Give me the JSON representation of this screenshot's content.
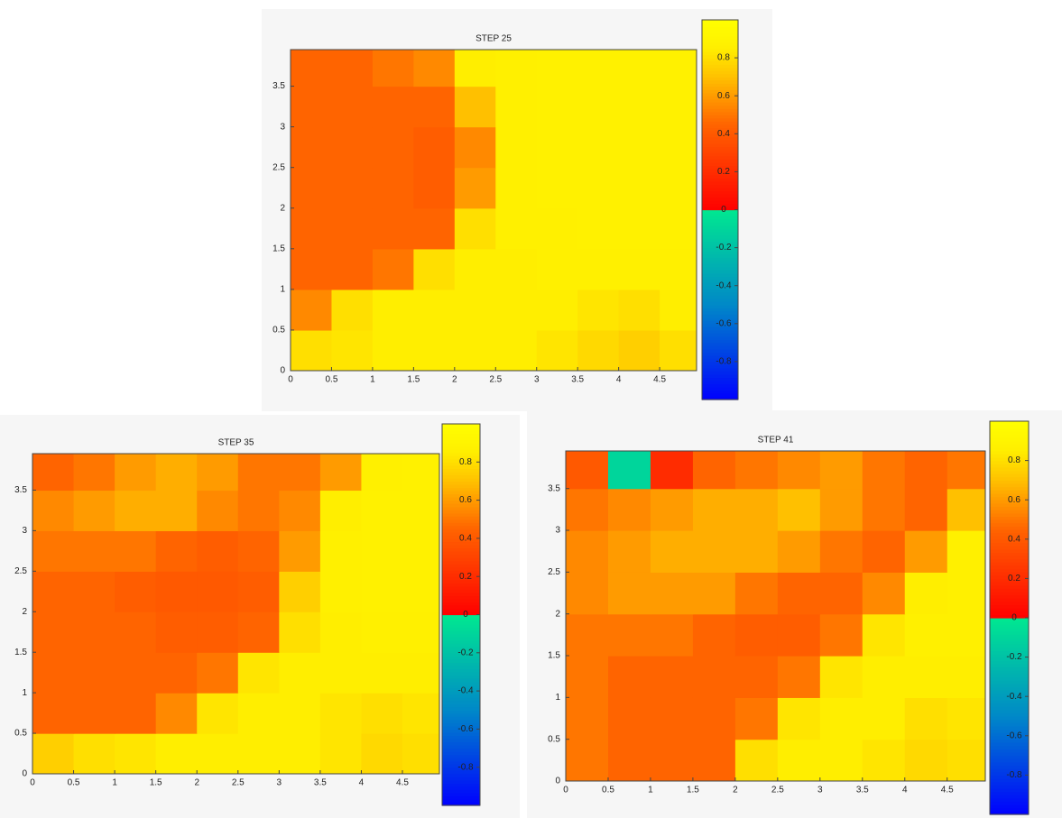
{
  "chart_data": [
    {
      "type": "heatmap",
      "title": "STEP 25",
      "x": [
        0.25,
        0.75,
        1.25,
        1.75,
        2.25,
        2.75,
        3.25,
        3.75,
        4.25,
        4.75
      ],
      "y": [
        0.25,
        0.75,
        1.25,
        1.75,
        2.25,
        2.75,
        3.25,
        3.75
      ],
      "values": [
        [
          0.8,
          0.82,
          0.85,
          0.85,
          0.85,
          0.85,
          0.82,
          0.78,
          0.75,
          0.8
        ],
        [
          0.55,
          0.8,
          0.85,
          0.85,
          0.85,
          0.85,
          0.85,
          0.82,
          0.8,
          0.85
        ],
        [
          0.45,
          0.45,
          0.5,
          0.8,
          0.85,
          0.85,
          0.87,
          0.87,
          0.87,
          0.87
        ],
        [
          0.45,
          0.45,
          0.45,
          0.45,
          0.8,
          0.87,
          0.87,
          0.88,
          0.88,
          0.88
        ],
        [
          0.45,
          0.45,
          0.45,
          0.42,
          0.6,
          0.87,
          0.88,
          0.88,
          0.88,
          0.88
        ],
        [
          0.45,
          0.45,
          0.45,
          0.42,
          0.55,
          0.87,
          0.88,
          0.88,
          0.88,
          0.88
        ],
        [
          0.45,
          0.45,
          0.45,
          0.45,
          0.7,
          0.87,
          0.88,
          0.88,
          0.88,
          0.88
        ],
        [
          0.45,
          0.45,
          0.5,
          0.55,
          0.85,
          0.87,
          0.88,
          0.88,
          0.88,
          0.88
        ]
      ],
      "xlim": [
        0,
        4.95
      ],
      "ylim": [
        0,
        3.95
      ],
      "clim": [
        -1,
        1
      ],
      "xticks": [
        0,
        0.5,
        1,
        1.5,
        2,
        2.5,
        3,
        3.5,
        4,
        4.5
      ],
      "yticks": [
        0,
        0.5,
        1,
        1.5,
        2,
        2.5,
        3,
        3.5
      ],
      "cticks": [
        -0.8,
        -0.6,
        -0.4,
        -0.2,
        0,
        0.2,
        0.4,
        0.6,
        0.8
      ],
      "colorbar": true,
      "colormap": {
        "negative": [
          [
            -1,
            "#0000ff"
          ],
          [
            -0.5,
            "#0088c8"
          ],
          [
            0,
            "#00e890"
          ]
        ],
        "positive": [
          [
            0,
            "#ff0000"
          ],
          [
            0.45,
            "#ff6400"
          ],
          [
            0.7,
            "#ffc000"
          ],
          [
            0.85,
            "#ffee00"
          ],
          [
            1,
            "#ffff00"
          ]
        ]
      }
    },
    {
      "type": "heatmap",
      "title": "STEP 35",
      "x": [
        0.25,
        0.75,
        1.25,
        1.75,
        2.25,
        2.75,
        3.25,
        3.75,
        4.25,
        4.75
      ],
      "y": [
        0.25,
        0.75,
        1.25,
        1.75,
        2.25,
        2.75,
        3.25,
        3.75
      ],
      "values": [
        [
          0.75,
          0.8,
          0.82,
          0.85,
          0.85,
          0.85,
          0.85,
          0.82,
          0.78,
          0.8
        ],
        [
          0.45,
          0.45,
          0.45,
          0.55,
          0.82,
          0.85,
          0.85,
          0.82,
          0.8,
          0.82
        ],
        [
          0.45,
          0.45,
          0.45,
          0.45,
          0.5,
          0.82,
          0.85,
          0.85,
          0.85,
          0.85
        ],
        [
          0.45,
          0.45,
          0.45,
          0.42,
          0.42,
          0.45,
          0.8,
          0.85,
          0.87,
          0.87
        ],
        [
          0.45,
          0.45,
          0.42,
          0.4,
          0.4,
          0.42,
          0.75,
          0.87,
          0.88,
          0.88
        ],
        [
          0.5,
          0.5,
          0.5,
          0.45,
          0.42,
          0.45,
          0.6,
          0.87,
          0.88,
          0.88
        ],
        [
          0.55,
          0.6,
          0.65,
          0.65,
          0.55,
          0.5,
          0.55,
          0.85,
          0.88,
          0.88
        ],
        [
          0.45,
          0.5,
          0.6,
          0.65,
          0.6,
          0.5,
          0.5,
          0.6,
          0.87,
          0.88
        ]
      ],
      "xlim": [
        0,
        4.95
      ],
      "ylim": [
        0,
        3.95
      ],
      "clim": [
        -1,
        1
      ],
      "xticks": [
        0,
        0.5,
        1,
        1.5,
        2,
        2.5,
        3,
        3.5,
        4,
        4.5
      ],
      "yticks": [
        0,
        0.5,
        1,
        1.5,
        2,
        2.5,
        3,
        3.5
      ],
      "cticks": [
        -0.8,
        -0.6,
        -0.4,
        -0.2,
        0,
        0.2,
        0.4,
        0.6,
        0.8
      ],
      "colorbar": true,
      "colormap": {
        "negative": [
          [
            -1,
            "#0000ff"
          ],
          [
            -0.5,
            "#0088c8"
          ],
          [
            0,
            "#00e890"
          ]
        ],
        "positive": [
          [
            0,
            "#ff0000"
          ],
          [
            0.45,
            "#ff6400"
          ],
          [
            0.7,
            "#ffc000"
          ],
          [
            0.85,
            "#ffee00"
          ],
          [
            1,
            "#ffff00"
          ]
        ]
      }
    },
    {
      "type": "heatmap",
      "title": "STEP 41",
      "x": [
        0.25,
        0.75,
        1.25,
        1.75,
        2.25,
        2.75,
        3.25,
        3.75,
        4.25,
        4.75
      ],
      "y": [
        0.25,
        0.75,
        1.25,
        1.75,
        2.25,
        2.75,
        3.25,
        3.75
      ],
      "values": [
        [
          0.5,
          0.45,
          0.45,
          0.45,
          0.8,
          0.85,
          0.85,
          0.82,
          0.78,
          0.8
        ],
        [
          0.5,
          0.45,
          0.45,
          0.45,
          0.5,
          0.82,
          0.85,
          0.85,
          0.8,
          0.82
        ],
        [
          0.5,
          0.45,
          0.45,
          0.45,
          0.45,
          0.5,
          0.82,
          0.85,
          0.85,
          0.85
        ],
        [
          0.5,
          0.5,
          0.5,
          0.45,
          0.42,
          0.42,
          0.5,
          0.82,
          0.87,
          0.87
        ],
        [
          0.55,
          0.6,
          0.6,
          0.6,
          0.5,
          0.45,
          0.45,
          0.55,
          0.85,
          0.87
        ],
        [
          0.55,
          0.6,
          0.65,
          0.65,
          0.65,
          0.6,
          0.5,
          0.45,
          0.6,
          0.87
        ],
        [
          0.5,
          0.55,
          0.6,
          0.65,
          0.65,
          0.7,
          0.6,
          0.5,
          0.45,
          0.7
        ],
        [
          0.4,
          -0.1,
          0.2,
          0.45,
          0.5,
          0.55,
          0.6,
          0.5,
          0.45,
          0.5
        ]
      ],
      "xlim": [
        0,
        4.95
      ],
      "ylim": [
        0,
        3.95
      ],
      "clim": [
        -1,
        1
      ],
      "xticks": [
        0,
        0.5,
        1,
        1.5,
        2,
        2.5,
        3,
        3.5,
        4,
        4.5
      ],
      "yticks": [
        0,
        0.5,
        1,
        1.5,
        2,
        2.5,
        3,
        3.5
      ],
      "cticks": [
        -0.8,
        -0.6,
        -0.4,
        -0.2,
        0,
        0.2,
        0.4,
        0.6,
        0.8
      ],
      "colorbar": true,
      "colormap": {
        "negative": [
          [
            -1,
            "#0000ff"
          ],
          [
            -0.5,
            "#0088c8"
          ],
          [
            0,
            "#00e890"
          ]
        ],
        "positive": [
          [
            0,
            "#ff0000"
          ],
          [
            0.45,
            "#ff6400"
          ],
          [
            0.7,
            "#ffc000"
          ],
          [
            0.85,
            "#ffee00"
          ],
          [
            1,
            "#ffff00"
          ]
        ]
      }
    }
  ]
}
